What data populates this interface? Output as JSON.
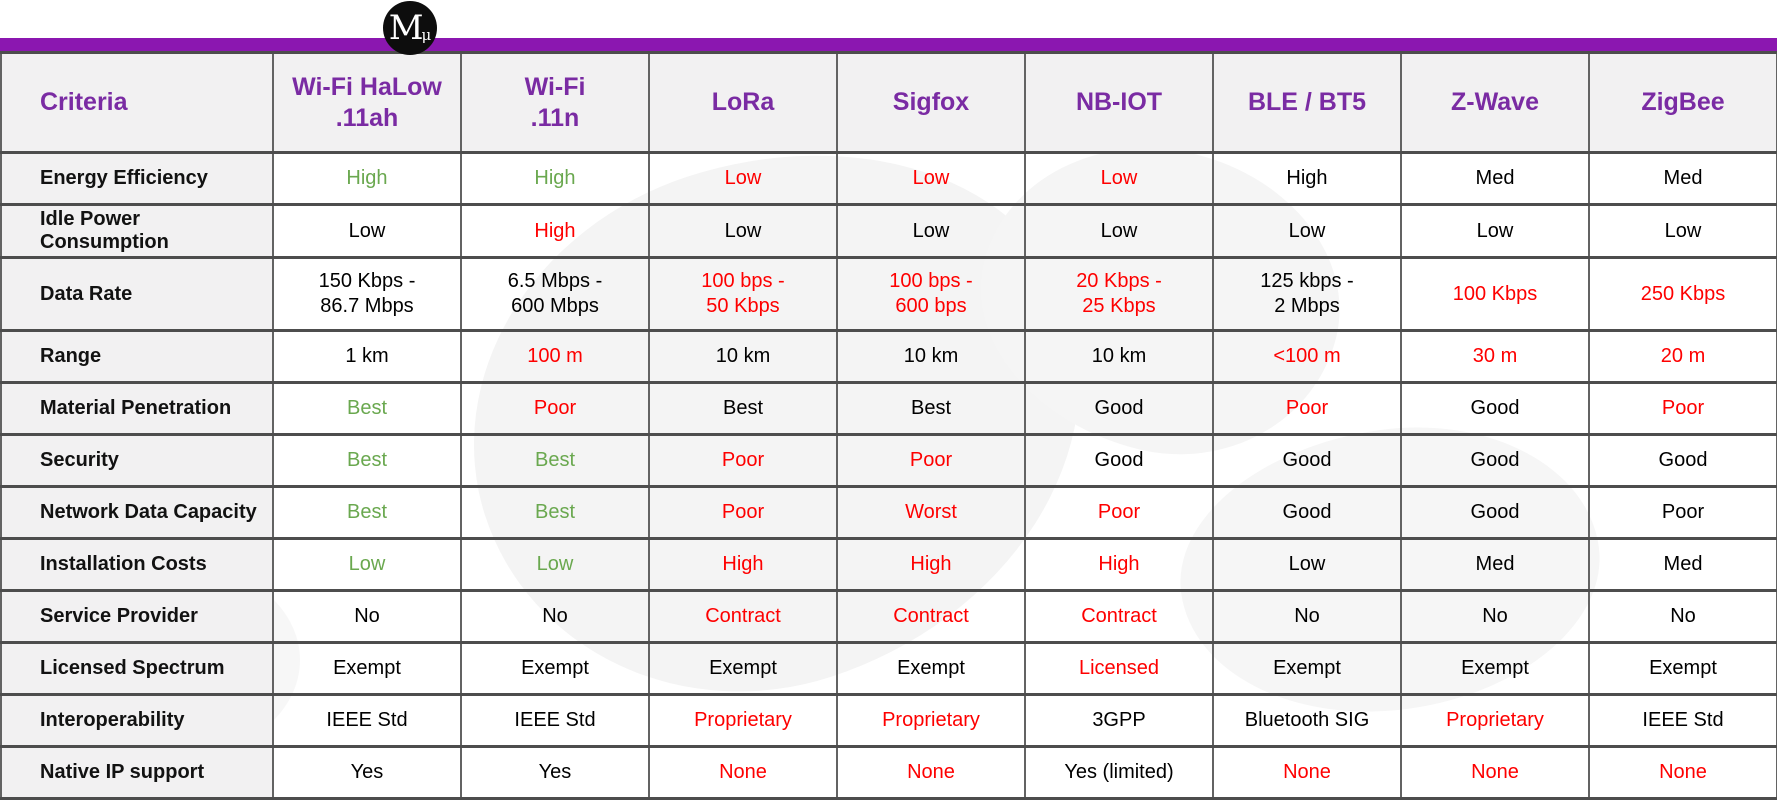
{
  "logo": {
    "main": "M",
    "sub": "μ"
  },
  "palette": {
    "bar_purple": "#8b17b0",
    "header_purple": "#7a2ba3",
    "positive_green": "#6aa84f",
    "negative_red": "#fe0000",
    "label_bg": "#f2f1f2",
    "grid_line": "#4d4d4d"
  },
  "chart_data": {
    "type": "table",
    "title": "",
    "criteria_header": "Criteria",
    "columns": [
      {
        "line1": "Wi-Fi HaLow",
        "line2": ".11ah"
      },
      {
        "line1": "Wi-Fi",
        "line2": ".11n"
      },
      {
        "line1": "LoRa",
        "line2": ""
      },
      {
        "line1": "Sigfox",
        "line2": ""
      },
      {
        "line1": "NB-IOT",
        "line2": ""
      },
      {
        "line1": "BLE / BT5",
        "line2": ""
      },
      {
        "line1": "Z-Wave",
        "line2": ""
      },
      {
        "line1": "ZigBee",
        "line2": ""
      }
    ],
    "tone_legend": {
      "pos": "good (green)",
      "neg": "bad (red)",
      "neu": "neutral (black)"
    },
    "rows": [
      {
        "label": "Energy Efficiency",
        "tall": false,
        "cells": [
          {
            "t": "High",
            "c": "pos"
          },
          {
            "t": "High",
            "c": "pos"
          },
          {
            "t": "Low",
            "c": "neg"
          },
          {
            "t": "Low",
            "c": "neg"
          },
          {
            "t": "Low",
            "c": "neg"
          },
          {
            "t": "High",
            "c": "neu"
          },
          {
            "t": "Med",
            "c": "neu"
          },
          {
            "t": "Med",
            "c": "neu"
          }
        ]
      },
      {
        "label": "Idle Power Consumption",
        "tall": false,
        "cells": [
          {
            "t": "Low",
            "c": "neu"
          },
          {
            "t": "High",
            "c": "neg"
          },
          {
            "t": "Low",
            "c": "neu"
          },
          {
            "t": "Low",
            "c": "neu"
          },
          {
            "t": "Low",
            "c": "neu"
          },
          {
            "t": "Low",
            "c": "neu"
          },
          {
            "t": "Low",
            "c": "neu"
          },
          {
            "t": "Low",
            "c": "neu"
          }
        ]
      },
      {
        "label": "Data Rate",
        "tall": true,
        "cells": [
          {
            "t": "150 Kbps -\n86.7 Mbps",
            "c": "neu"
          },
          {
            "t": "6.5 Mbps -\n600 Mbps",
            "c": "neu"
          },
          {
            "t": "100 bps -\n50 Kbps",
            "c": "neg"
          },
          {
            "t": "100 bps -\n600 bps",
            "c": "neg"
          },
          {
            "t": "20 Kbps -\n25 Kbps",
            "c": "neg"
          },
          {
            "t": "125 kbps -\n2 Mbps",
            "c": "neu"
          },
          {
            "t": "100 Kbps",
            "c": "neg"
          },
          {
            "t": "250 Kbps",
            "c": "neg"
          }
        ]
      },
      {
        "label": "Range",
        "tall": false,
        "cells": [
          {
            "t": "1 km",
            "c": "neu"
          },
          {
            "t": "100 m",
            "c": "neg"
          },
          {
            "t": "10 km",
            "c": "neu"
          },
          {
            "t": "10 km",
            "c": "neu"
          },
          {
            "t": "10 km",
            "c": "neu"
          },
          {
            "t": "<100 m",
            "c": "neg"
          },
          {
            "t": "30 m",
            "c": "neg"
          },
          {
            "t": "20 m",
            "c": "neg"
          }
        ]
      },
      {
        "label": "Material Penetration",
        "tall": false,
        "cells": [
          {
            "t": "Best",
            "c": "pos"
          },
          {
            "t": "Poor",
            "c": "neg"
          },
          {
            "t": "Best",
            "c": "neu"
          },
          {
            "t": "Best",
            "c": "neu"
          },
          {
            "t": "Good",
            "c": "neu"
          },
          {
            "t": "Poor",
            "c": "neg"
          },
          {
            "t": "Good",
            "c": "neu"
          },
          {
            "t": "Poor",
            "c": "neg"
          }
        ]
      },
      {
        "label": "Security",
        "tall": false,
        "cells": [
          {
            "t": "Best",
            "c": "pos"
          },
          {
            "t": "Best",
            "c": "pos"
          },
          {
            "t": "Poor",
            "c": "neg"
          },
          {
            "t": "Poor",
            "c": "neg"
          },
          {
            "t": "Good",
            "c": "neu"
          },
          {
            "t": "Good",
            "c": "neu"
          },
          {
            "t": "Good",
            "c": "neu"
          },
          {
            "t": "Good",
            "c": "neu"
          }
        ]
      },
      {
        "label": "Network Data Capacity",
        "tall": false,
        "cells": [
          {
            "t": "Best",
            "c": "pos"
          },
          {
            "t": "Best",
            "c": "pos"
          },
          {
            "t": "Poor",
            "c": "neg"
          },
          {
            "t": "Worst",
            "c": "neg"
          },
          {
            "t": "Poor",
            "c": "neg"
          },
          {
            "t": "Good",
            "c": "neu"
          },
          {
            "t": "Good",
            "c": "neu"
          },
          {
            "t": "Poor",
            "c": "neu"
          }
        ]
      },
      {
        "label": "Installation Costs",
        "tall": false,
        "cells": [
          {
            "t": "Low",
            "c": "pos"
          },
          {
            "t": "Low",
            "c": "pos"
          },
          {
            "t": "High",
            "c": "neg"
          },
          {
            "t": "High",
            "c": "neg"
          },
          {
            "t": "High",
            "c": "neg"
          },
          {
            "t": "Low",
            "c": "neu"
          },
          {
            "t": "Med",
            "c": "neu"
          },
          {
            "t": "Med",
            "c": "neu"
          }
        ]
      },
      {
        "label": "Service Provider",
        "tall": false,
        "cells": [
          {
            "t": "No",
            "c": "neu"
          },
          {
            "t": "No",
            "c": "neu"
          },
          {
            "t": "Contract",
            "c": "neg"
          },
          {
            "t": "Contract",
            "c": "neg"
          },
          {
            "t": "Contract",
            "c": "neg"
          },
          {
            "t": "No",
            "c": "neu"
          },
          {
            "t": "No",
            "c": "neu"
          },
          {
            "t": "No",
            "c": "neu"
          }
        ]
      },
      {
        "label": "Licensed Spectrum",
        "tall": false,
        "cells": [
          {
            "t": "Exempt",
            "c": "neu"
          },
          {
            "t": "Exempt",
            "c": "neu"
          },
          {
            "t": "Exempt",
            "c": "neu"
          },
          {
            "t": "Exempt",
            "c": "neu"
          },
          {
            "t": "Licensed",
            "c": "neg"
          },
          {
            "t": "Exempt",
            "c": "neu"
          },
          {
            "t": "Exempt",
            "c": "neu"
          },
          {
            "t": "Exempt",
            "c": "neu"
          }
        ]
      },
      {
        "label": "Interoperability",
        "tall": false,
        "cells": [
          {
            "t": "IEEE Std",
            "c": "neu"
          },
          {
            "t": "IEEE Std",
            "c": "neu"
          },
          {
            "t": "Proprietary",
            "c": "neg"
          },
          {
            "t": "Proprietary",
            "c": "neg"
          },
          {
            "t": "3GPP",
            "c": "neu"
          },
          {
            "t": "Bluetooth SIG",
            "c": "neu"
          },
          {
            "t": "Proprietary",
            "c": "neg"
          },
          {
            "t": "IEEE Std",
            "c": "neu"
          }
        ]
      },
      {
        "label": "Native IP support",
        "tall": false,
        "cells": [
          {
            "t": "Yes",
            "c": "neu"
          },
          {
            "t": "Yes",
            "c": "neu"
          },
          {
            "t": "None",
            "c": "neg"
          },
          {
            "t": "None",
            "c": "neg"
          },
          {
            "t": "Yes (limited)",
            "c": "neu"
          },
          {
            "t": "None",
            "c": "neg"
          },
          {
            "t": "None",
            "c": "neg"
          },
          {
            "t": "None",
            "c": "neg"
          }
        ]
      }
    ]
  }
}
